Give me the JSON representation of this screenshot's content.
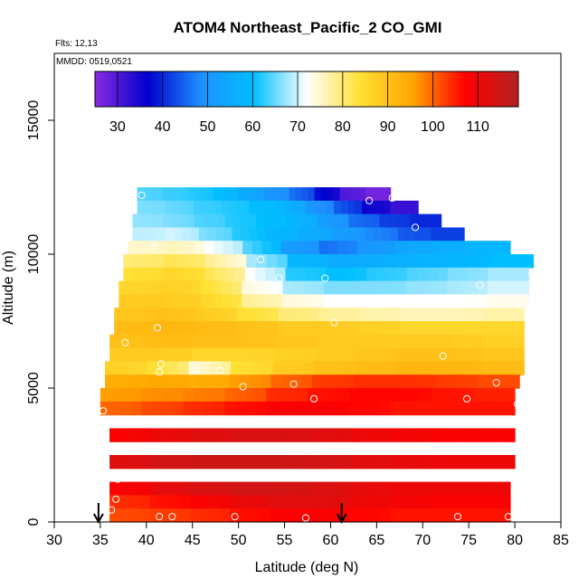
{
  "chart_data": {
    "type": "heatmap",
    "title": "ATOM4 Northeast_Pacific_2 CO_GMI",
    "subtitle_flights": "Flts: 12,13",
    "subtitle_dates": "MMDD: 0519,0521",
    "xlabel": "Latitude (deg N)",
    "ylabel": "Altitude (m)",
    "xlim": [
      30,
      85
    ],
    "ylim": [
      0,
      17500
    ],
    "x_ticks": [
      30,
      35,
      40,
      45,
      50,
      55,
      60,
      65,
      70,
      75,
      80,
      85
    ],
    "y_ticks": [
      0,
      5000,
      10000,
      15000
    ],
    "colorbar": {
      "range": [
        25,
        119
      ],
      "ticks": [
        30,
        40,
        50,
        60,
        70,
        80,
        90,
        100,
        110
      ],
      "colors": [
        "#8a2be2",
        "#0000cd",
        "#1e90ff",
        "#00bfff",
        "#ffffff",
        "#ffe135",
        "#ffa500",
        "#ff0000",
        "#b22222"
      ]
    },
    "grid": false,
    "annotations": {
      "arrows_at_latitude": [
        34.8,
        61.2
      ]
    },
    "altitude_bands": [
      {
        "alt": 12000,
        "lat_min": 39,
        "lat_max": 66.5,
        "values": [
          64,
          63,
          62,
          60,
          55,
          50,
          46,
          38,
          30,
          27
        ]
      },
      {
        "alt": 11500,
        "lat_min": 39,
        "lat_max": 69.5,
        "values": [
          66,
          65,
          63,
          62,
          60,
          58,
          50,
          44,
          36,
          32
        ]
      },
      {
        "alt": 11000,
        "lat_min": 38.5,
        "lat_max": 72,
        "values": [
          67,
          66,
          64,
          62,
          60,
          58,
          52,
          46,
          42,
          40
        ]
      },
      {
        "alt": 10500,
        "lat_min": 38.5,
        "lat_max": 74.5,
        "values": [
          69,
          70,
          66,
          62,
          58,
          56,
          52,
          48,
          44,
          42
        ]
      },
      {
        "alt": 10000,
        "lat_min": 38,
        "lat_max": 79.5,
        "values": [
          75,
          76,
          72,
          64,
          52,
          46,
          50,
          54,
          56,
          58
        ]
      },
      {
        "alt": 9500,
        "lat_min": 37.5,
        "lat_max": 82,
        "values": [
          80,
          82,
          78,
          68,
          58,
          55,
          56,
          57,
          58,
          60
        ]
      },
      {
        "alt": 9000,
        "lat_min": 37.5,
        "lat_max": 81.5,
        "values": [
          84,
          86,
          82,
          72,
          62,
          60,
          62,
          64,
          66,
          68
        ]
      },
      {
        "alt": 8500,
        "lat_min": 37,
        "lat_max": 81.5,
        "values": [
          86,
          87,
          84,
          74,
          68,
          66,
          66,
          67,
          68,
          70
        ]
      },
      {
        "alt": 8000,
        "lat_min": 37,
        "lat_max": 81.5,
        "values": [
          88,
          88,
          86,
          78,
          74,
          72,
          72,
          72,
          72,
          73
        ]
      },
      {
        "alt": 7500,
        "lat_min": 36.5,
        "lat_max": 81,
        "values": [
          89,
          90,
          88,
          84,
          80,
          78,
          77,
          76,
          76,
          77
        ]
      },
      {
        "alt": 7000,
        "lat_min": 36.5,
        "lat_max": 81,
        "values": [
          91,
          92,
          91,
          90,
          88,
          88,
          87,
          86,
          86,
          86
        ]
      },
      {
        "alt": 6500,
        "lat_min": 36,
        "lat_max": 81,
        "values": [
          90,
          91,
          90,
          90,
          89,
          88,
          88,
          88,
          88,
          87
        ]
      },
      {
        "alt": 6000,
        "lat_min": 36,
        "lat_max": 81,
        "values": [
          88,
          88,
          86,
          86,
          87,
          88,
          89,
          90,
          90,
          89
        ]
      },
      {
        "alt": 5500,
        "lat_min": 35.5,
        "lat_max": 81,
        "values": [
          87,
          84,
          74,
          84,
          88,
          90,
          91,
          92,
          92,
          91
        ]
      },
      {
        "alt": 5000,
        "lat_min": 35.5,
        "lat_max": 80.5,
        "values": [
          94,
          95,
          94,
          96,
          100,
          103,
          104,
          104,
          103,
          102
        ]
      },
      {
        "alt": 4500,
        "lat_min": 35,
        "lat_max": 80,
        "values": [
          96,
          97,
          98,
          100,
          104,
          106,
          107,
          107,
          106,
          105
        ]
      },
      {
        "alt": 4000,
        "lat_min": 35,
        "lat_max": 80,
        "values": [
          100,
          102,
          104,
          106,
          108,
          108,
          107,
          106,
          106,
          106
        ]
      },
      {
        "alt": 3000,
        "lat_min": 36,
        "lat_max": 80,
        "values": [
          108,
          110,
          112,
          113,
          113,
          112,
          110,
          109,
          108,
          108
        ]
      },
      {
        "alt": 2000,
        "lat_min": 36,
        "lat_max": 80,
        "values": [
          112,
          114,
          115,
          115,
          115,
          114,
          112,
          111,
          110,
          110
        ]
      },
      {
        "alt": 1000,
        "lat_min": 36,
        "lat_max": 79.5,
        "values": [
          108,
          111,
          113,
          114,
          114,
          113,
          111,
          110,
          110,
          110
        ]
      },
      {
        "alt": 500,
        "lat_min": 36,
        "lat_max": 79.5,
        "values": [
          104,
          106,
          108,
          110,
          112,
          112,
          110,
          109,
          108,
          108
        ]
      },
      {
        "alt": 0,
        "lat_min": 36,
        "lat_max": 79.5,
        "values": [
          102,
          103,
          104,
          106,
          108,
          108,
          107,
          106,
          106,
          106
        ]
      }
    ],
    "observation_points": [
      {
        "lat": 39.5,
        "alt": 12200
      },
      {
        "lat": 64.2,
        "alt": 12000
      },
      {
        "lat": 66.7,
        "alt": 12100
      },
      {
        "lat": 69.2,
        "alt": 11000
      },
      {
        "lat": 40.8,
        "alt": 10300
      },
      {
        "lat": 45.8,
        "alt": 10300
      },
      {
        "lat": 52.4,
        "alt": 9800
      },
      {
        "lat": 54.4,
        "alt": 9100
      },
      {
        "lat": 59.4,
        "alt": 9100
      },
      {
        "lat": 81.9,
        "alt": 9300
      },
      {
        "lat": 76.2,
        "alt": 8850
      },
      {
        "lat": 60.4,
        "alt": 7450
      },
      {
        "lat": 41.2,
        "alt": 7250
      },
      {
        "lat": 37.7,
        "alt": 6700
      },
      {
        "lat": 72.2,
        "alt": 6200
      },
      {
        "lat": 41.6,
        "alt": 5900
      },
      {
        "lat": 41.4,
        "alt": 5600
      },
      {
        "lat": 48.0,
        "alt": 5650
      },
      {
        "lat": 78.0,
        "alt": 5200
      },
      {
        "lat": 56.0,
        "alt": 5150
      },
      {
        "lat": 50.5,
        "alt": 5050
      },
      {
        "lat": 58.2,
        "alt": 4600
      },
      {
        "lat": 74.8,
        "alt": 4600
      },
      {
        "lat": 80.3,
        "alt": 4400
      },
      {
        "lat": 35.3,
        "alt": 4150
      },
      {
        "lat": 36.9,
        "alt": 1600
      },
      {
        "lat": 36.7,
        "alt": 850
      },
      {
        "lat": 36.2,
        "alt": 450
      },
      {
        "lat": 41.4,
        "alt": 200
      },
      {
        "lat": 42.8,
        "alt": 200
      },
      {
        "lat": 49.6,
        "alt": 200
      },
      {
        "lat": 57.3,
        "alt": 150
      },
      {
        "lat": 73.8,
        "alt": 200
      },
      {
        "lat": 79.3,
        "alt": 200
      }
    ]
  }
}
